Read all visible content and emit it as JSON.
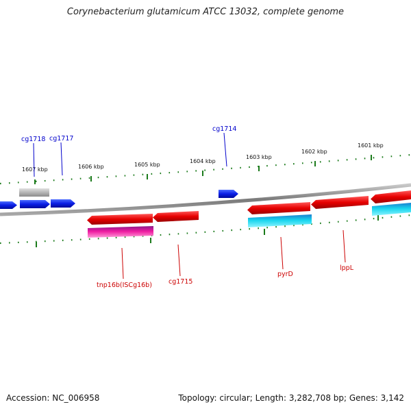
{
  "title": "Corynebacterium glutamicum ATCC 13032, complete genome",
  "footer": {
    "accession": "Accession: NC_006958",
    "summary": "Topology: circular; Length: 3,282,708 bp; Genes: 3,142"
  },
  "kbp_labels": [
    "1607 kbp",
    "1606 kbp",
    "1605 kbp",
    "1604 kbp",
    "1603 kbp",
    "1602 kbp",
    "1601 kbp"
  ],
  "gene_labels": {
    "forward": [
      "cg1718",
      "cg1717",
      "cg1714"
    ],
    "reverse": [
      "tnp16b(ISCg16b)",
      "cg1715",
      "pyrD",
      "lppL"
    ]
  },
  "colors": {
    "forward_label": "#0000cc",
    "reverse_label": "#cc0000",
    "tick": "#1a7a1a",
    "backbone": "#808080"
  }
}
